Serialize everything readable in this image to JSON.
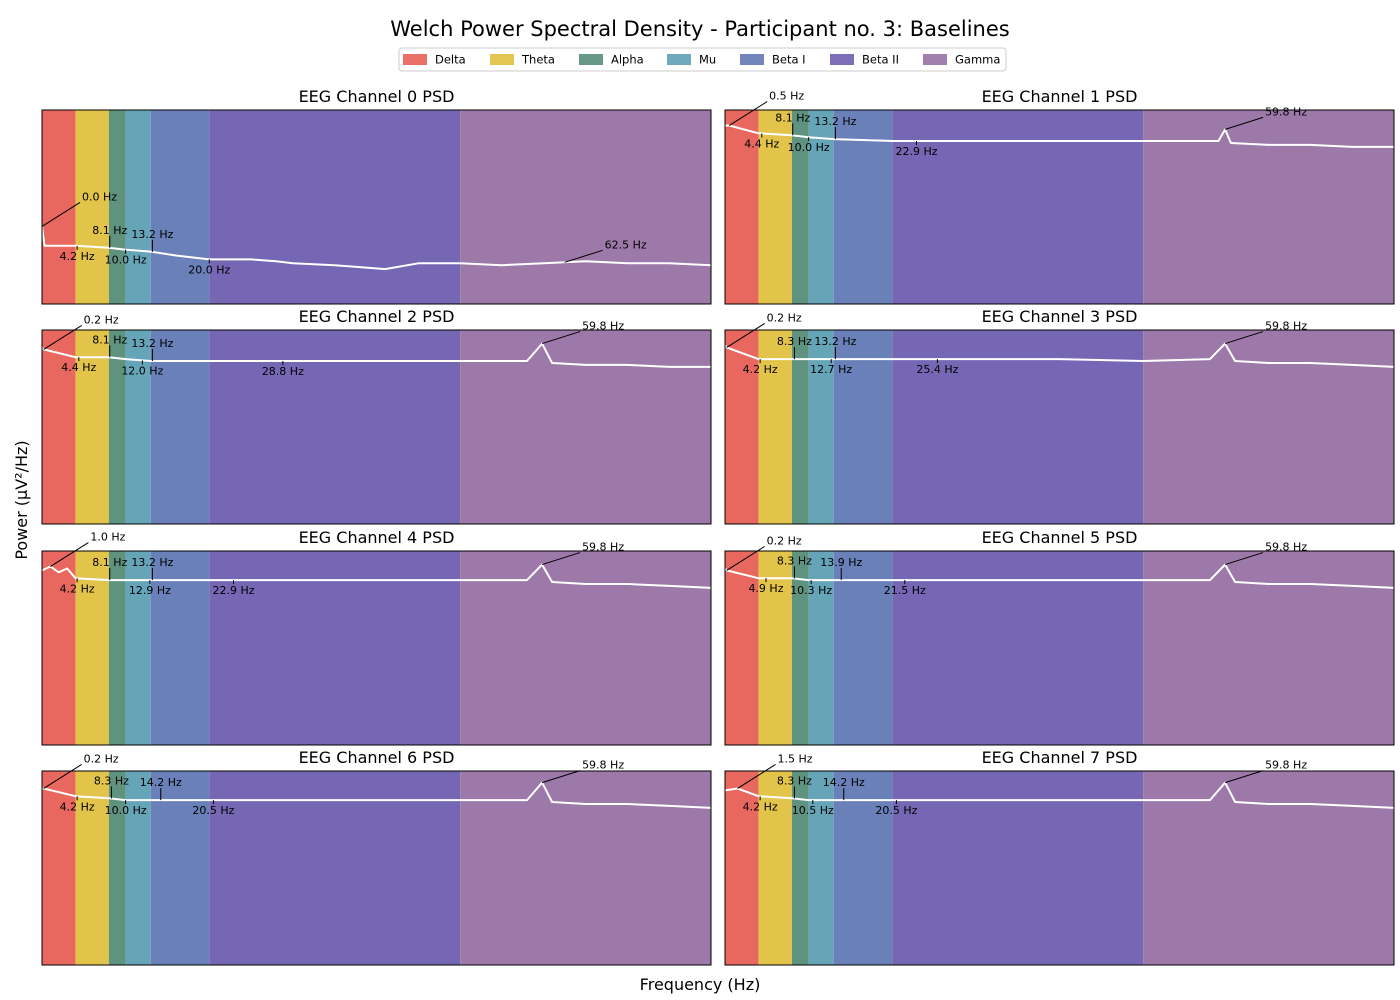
{
  "title": "Welch Power Spectral Density - Participant no. 3: Baselines",
  "xlabel": "Frequency (Hz)",
  "ylabel": "Power (µV²/Hz)",
  "colors": {
    "curve": "#ffffff",
    "axes_frame": "#000000"
  },
  "chart_data": {
    "type": "line",
    "legend_placement": "top-center",
    "grid": false,
    "xlim": [
      0,
      80
    ],
    "bands": [
      {
        "name": "Delta",
        "range": [
          0,
          4
        ],
        "color": "#e8675f"
      },
      {
        "name": "Theta",
        "range": [
          4,
          8
        ],
        "color": "#e3c44a"
      },
      {
        "name": "Alpha",
        "range": [
          8,
          10
        ],
        "color": "#5f9380"
      },
      {
        "name": "Mu",
        "range": [
          10,
          13
        ],
        "color": "#66a5b7"
      },
      {
        "name": "Beta I",
        "range": [
          13,
          20
        ],
        "color": "#6a80b9"
      },
      {
        "name": "Beta II",
        "range": [
          20,
          50
        ],
        "color": "#7567b4"
      },
      {
        "name": "Gamma",
        "range": [
          50,
          80
        ],
        "color": "#9d79a9"
      }
    ],
    "panels": [
      {
        "title": "EEG Channel 0 PSD",
        "curve": {
          "x": [
            0,
            0.3,
            4,
            8,
            10,
            13,
            16,
            20,
            25,
            28,
            30,
            35,
            38,
            41,
            45,
            50,
            55,
            60,
            65,
            70,
            75,
            80
          ],
          "y": [
            0.4,
            0.3,
            0.3,
            0.29,
            0.28,
            0.27,
            0.25,
            0.23,
            0.23,
            0.22,
            0.21,
            0.2,
            0.19,
            0.18,
            0.21,
            0.21,
            0.2,
            0.21,
            0.22,
            0.21,
            0.21,
            0.2
          ]
        },
        "annotations": [
          {
            "label": "0.0 Hz",
            "x": 0.0
          },
          {
            "label": "4.2 Hz",
            "x": 4.2
          },
          {
            "label": "8.1 Hz",
            "x": 8.1
          },
          {
            "label": "10.0 Hz",
            "x": 10.0
          },
          {
            "label": "13.2 Hz",
            "x": 13.2
          },
          {
            "label": "20.0 Hz",
            "x": 20.0
          },
          {
            "label": "62.5 Hz",
            "x": 62.5
          }
        ]
      },
      {
        "title": "EEG Channel 1 PSD",
        "curve": {
          "x": [
            0,
            0.5,
            4,
            8,
            10,
            13,
            20,
            30,
            40,
            50,
            59,
            59.8,
            60.5,
            65,
            70,
            75,
            80
          ],
          "y": [
            0.92,
            0.92,
            0.88,
            0.87,
            0.86,
            0.85,
            0.84,
            0.84,
            0.84,
            0.84,
            0.84,
            0.9,
            0.83,
            0.82,
            0.82,
            0.81,
            0.81
          ]
        },
        "annotations": [
          {
            "label": "0.5 Hz",
            "x": 0.5
          },
          {
            "label": "4.4 Hz",
            "x": 4.4
          },
          {
            "label": "8.1 Hz",
            "x": 8.1
          },
          {
            "label": "10.0 Hz",
            "x": 10.0
          },
          {
            "label": "13.2 Hz",
            "x": 13.2
          },
          {
            "label": "22.9 Hz",
            "x": 22.9
          },
          {
            "label": "59.8 Hz",
            "x": 59.8
          }
        ]
      },
      {
        "title": "EEG Channel 2 PSD",
        "curve": {
          "x": [
            0,
            0.2,
            4,
            8,
            10,
            13,
            20,
            30,
            40,
            50,
            58,
            59.8,
            61,
            65,
            70,
            75,
            80
          ],
          "y": [
            0.91,
            0.9,
            0.86,
            0.86,
            0.85,
            0.84,
            0.84,
            0.84,
            0.84,
            0.84,
            0.84,
            0.93,
            0.83,
            0.82,
            0.82,
            0.81,
            0.81
          ]
        },
        "annotations": [
          {
            "label": "0.2 Hz",
            "x": 0.2
          },
          {
            "label": "4.4 Hz",
            "x": 4.4
          },
          {
            "label": "8.1 Hz",
            "x": 8.1
          },
          {
            "label": "12.0 Hz",
            "x": 12.0
          },
          {
            "label": "13.2 Hz",
            "x": 13.2
          },
          {
            "label": "28.8 Hz",
            "x": 28.8
          },
          {
            "label": "59.8 Hz",
            "x": 59.8
          }
        ]
      },
      {
        "title": "EEG Channel 3 PSD",
        "curve": {
          "x": [
            0,
            0.2,
            4,
            8,
            10,
            13,
            20,
            30,
            40,
            50,
            58,
            59.8,
            61,
            65,
            70,
            75,
            80
          ],
          "y": [
            0.92,
            0.91,
            0.85,
            0.85,
            0.85,
            0.85,
            0.85,
            0.85,
            0.85,
            0.84,
            0.85,
            0.93,
            0.84,
            0.83,
            0.83,
            0.82,
            0.81
          ]
        },
        "annotations": [
          {
            "label": "0.2 Hz",
            "x": 0.2
          },
          {
            "label": "4.2 Hz",
            "x": 4.2
          },
          {
            "label": "8.3 Hz",
            "x": 8.3
          },
          {
            "label": "12.7 Hz",
            "x": 12.7
          },
          {
            "label": "13.2 Hz",
            "x": 13.2
          },
          {
            "label": "25.4 Hz",
            "x": 25.4
          },
          {
            "label": "59.8 Hz",
            "x": 59.8
          }
        ]
      },
      {
        "title": "EEG Channel 4 PSD",
        "curve": {
          "x": [
            0,
            1.0,
            2,
            3,
            4,
            8,
            10,
            13,
            20,
            30,
            40,
            50,
            58,
            59.8,
            61,
            65,
            70,
            75,
            80
          ],
          "y": [
            0.9,
            0.92,
            0.89,
            0.91,
            0.86,
            0.85,
            0.85,
            0.85,
            0.85,
            0.85,
            0.85,
            0.85,
            0.85,
            0.93,
            0.84,
            0.83,
            0.83,
            0.82,
            0.81
          ]
        },
        "annotations": [
          {
            "label": "1.0 Hz",
            "x": 1.0
          },
          {
            "label": "4.2 Hz",
            "x": 4.2
          },
          {
            "label": "8.1 Hz",
            "x": 8.1
          },
          {
            "label": "12.9 Hz",
            "x": 12.9
          },
          {
            "label": "13.2 Hz",
            "x": 13.2
          },
          {
            "label": "22.9 Hz",
            "x": 22.9
          },
          {
            "label": "59.8 Hz",
            "x": 59.8
          }
        ]
      },
      {
        "title": "EEG Channel 5 PSD",
        "curve": {
          "x": [
            0,
            0.2,
            4,
            8,
            10,
            13,
            20,
            30,
            40,
            50,
            58,
            59.8,
            61,
            65,
            70,
            75,
            80
          ],
          "y": [
            0.91,
            0.9,
            0.86,
            0.86,
            0.85,
            0.85,
            0.85,
            0.85,
            0.85,
            0.85,
            0.85,
            0.93,
            0.84,
            0.83,
            0.83,
            0.82,
            0.81
          ]
        },
        "annotations": [
          {
            "label": "0.2 Hz",
            "x": 0.2
          },
          {
            "label": "4.9 Hz",
            "x": 4.9
          },
          {
            "label": "8.3 Hz",
            "x": 8.3
          },
          {
            "label": "10.3 Hz",
            "x": 10.3
          },
          {
            "label": "13.9 Hz",
            "x": 13.9
          },
          {
            "label": "21.5 Hz",
            "x": 21.5
          },
          {
            "label": "59.8 Hz",
            "x": 59.8
          }
        ]
      },
      {
        "title": "EEG Channel 6 PSD",
        "curve": {
          "x": [
            0,
            0.2,
            4,
            8,
            10,
            14.2,
            20,
            30,
            40,
            50,
            58,
            59.8,
            61,
            65,
            70,
            75,
            80
          ],
          "y": [
            0.91,
            0.91,
            0.87,
            0.86,
            0.85,
            0.85,
            0.85,
            0.85,
            0.85,
            0.85,
            0.85,
            0.94,
            0.84,
            0.83,
            0.83,
            0.82,
            0.81
          ]
        },
        "annotations": [
          {
            "label": "0.2 Hz",
            "x": 0.2
          },
          {
            "label": "4.2 Hz",
            "x": 4.2
          },
          {
            "label": "8.3 Hz",
            "x": 8.3
          },
          {
            "label": "10.0 Hz",
            "x": 10.0
          },
          {
            "label": "14.2 Hz",
            "x": 14.2
          },
          {
            "label": "20.5 Hz",
            "x": 20.5
          },
          {
            "label": "59.8 Hz",
            "x": 59.8
          }
        ]
      },
      {
        "title": "EEG Channel 7 PSD",
        "curve": {
          "x": [
            0,
            1.5,
            4,
            8,
            10,
            14.2,
            20,
            30,
            40,
            50,
            58,
            59.8,
            61,
            65,
            70,
            75,
            80
          ],
          "y": [
            0.9,
            0.91,
            0.87,
            0.86,
            0.85,
            0.85,
            0.85,
            0.85,
            0.85,
            0.85,
            0.85,
            0.94,
            0.84,
            0.83,
            0.83,
            0.82,
            0.81
          ]
        },
        "annotations": [
          {
            "label": "1.5 Hz",
            "x": 1.5
          },
          {
            "label": "4.2 Hz",
            "x": 4.2
          },
          {
            "label": "8.3 Hz",
            "x": 8.3
          },
          {
            "label": "10.5 Hz",
            "x": 10.5
          },
          {
            "label": "14.2 Hz",
            "x": 14.2
          },
          {
            "label": "20.5 Hz",
            "x": 20.5
          },
          {
            "label": "59.8 Hz",
            "x": 59.8
          }
        ]
      }
    ]
  }
}
